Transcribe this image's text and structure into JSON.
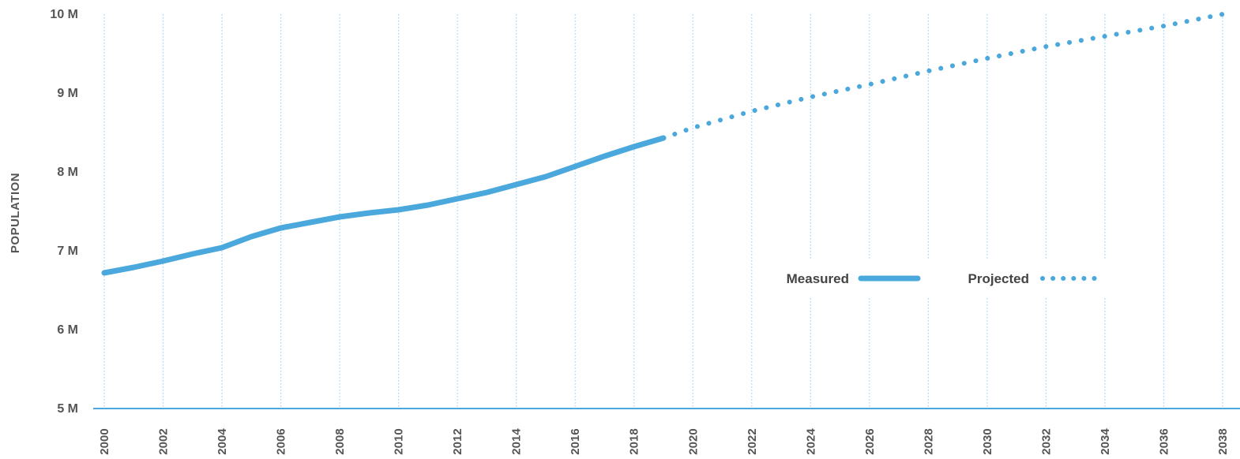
{
  "chart_data": {
    "type": "line",
    "ylabel": "POPULATION",
    "xlabel": "",
    "xlim": [
      2000,
      2038
    ],
    "ylim": [
      5000000,
      10000000
    ],
    "y_ticks": [
      {
        "value": 5000000,
        "label": "5 M"
      },
      {
        "value": 6000000,
        "label": "6 M"
      },
      {
        "value": 7000000,
        "label": "7 M"
      },
      {
        "value": 8000000,
        "label": "8 M"
      },
      {
        "value": 9000000,
        "label": "9 M"
      },
      {
        "value": 10000000,
        "label": "10 M"
      }
    ],
    "x_ticks": [
      "2000",
      "2002",
      "2004",
      "2006",
      "2008",
      "2010",
      "2012",
      "2014",
      "2016",
      "2018",
      "2020",
      "2022",
      "2024",
      "2026",
      "2028",
      "2030",
      "2032",
      "2034",
      "2036",
      "2038"
    ],
    "grid": "vertical dotted",
    "legend_position": "center-right",
    "series": [
      {
        "name": "Measured",
        "style": "solid",
        "color": "#4aa8dc",
        "x": [
          2000,
          2001,
          2002,
          2003,
          2004,
          2005,
          2006,
          2007,
          2008,
          2009,
          2010,
          2011,
          2012,
          2013,
          2014,
          2015,
          2016,
          2017,
          2018,
          2019
        ],
        "y": [
          6720000,
          6790000,
          6870000,
          6960000,
          7040000,
          7180000,
          7290000,
          7360000,
          7430000,
          7480000,
          7520000,
          7580000,
          7660000,
          7740000,
          7840000,
          7940000,
          8070000,
          8200000,
          8320000,
          8430000
        ]
      },
      {
        "name": "Projected",
        "style": "dotted",
        "color": "#4aa8dc",
        "x": [
          2019,
          2020,
          2022,
          2024,
          2026,
          2028,
          2030,
          2032,
          2034,
          2036,
          2038
        ],
        "y": [
          8430000,
          8560000,
          8770000,
          8950000,
          9110000,
          9280000,
          9440000,
          9590000,
          9720000,
          9850000,
          10000000
        ]
      }
    ]
  }
}
